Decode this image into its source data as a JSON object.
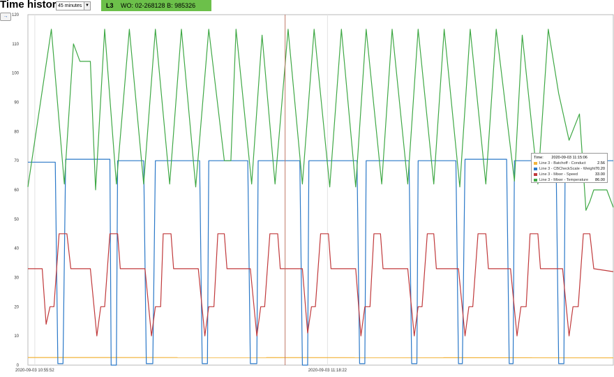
{
  "header": {
    "title": "Time history:",
    "range_select": {
      "value": "45 minutes"
    },
    "status": {
      "line": "L3",
      "wo": "WO: 02-268128 B: 985326",
      "color": "#6cc04a"
    },
    "expand_icon": "arrow-right-icon",
    "expand_label": "→"
  },
  "tooltip": {
    "time_label": "Time:",
    "time_value": "2020-09-03 11:15:06",
    "rows": [
      {
        "name": "Line 3 - Batchoff - Conduct",
        "value": "2.56"
      },
      {
        "name": "Line 3 - CBCheckScale - Weight",
        "value": "70.20"
      },
      {
        "name": "Line 3 - Mixer - Speed",
        "value": "33.00"
      },
      {
        "name": "Line 3 - Mixer - Temperature",
        "value": "86.00"
      }
    ]
  },
  "chart_data": {
    "type": "line",
    "ylim": [
      0,
      120
    ],
    "yticks": [
      0,
      10,
      20,
      30,
      40,
      50,
      60,
      70,
      80,
      90,
      100,
      110,
      120
    ],
    "x_tick_labels": [
      "2020-09-03 10:55:52",
      "2020-09-03 11:18:22"
    ],
    "x_tick_minutes": [
      0.53,
      23.03
    ],
    "xlim_minutes": [
      0,
      45
    ],
    "cursor_time_label": "2020-09-03 11:15:06",
    "cursor_minute": 19.77,
    "grid": "vertical lines at x ticks",
    "legend": "tooltip at cursor",
    "series": [
      {
        "name": "Line 3 - Batchoff - Conduct",
        "color": "#f2b33a",
        "points": [
          [
            0,
            2.6
          ],
          [
            45,
            2.5
          ]
        ]
      },
      {
        "name": "Line 3 - CBCheckScale - Weight",
        "color": "#2a78c8",
        "points": [
          [
            0,
            69.5
          ],
          [
            2.1,
            69.5
          ],
          [
            2.3,
            0.5
          ],
          [
            2.7,
            0.5
          ],
          [
            2.9,
            70.5
          ],
          [
            6.3,
            70.5
          ],
          [
            6.4,
            0
          ],
          [
            6.8,
            0
          ],
          [
            6.9,
            70
          ],
          [
            8.9,
            70
          ],
          [
            9.1,
            0.5
          ],
          [
            9.6,
            0.5
          ],
          [
            9.8,
            70
          ],
          [
            13.2,
            70
          ],
          [
            13.4,
            0.5
          ],
          [
            13.8,
            0.5
          ],
          [
            13.9,
            70
          ],
          [
            16.9,
            70
          ],
          [
            17.1,
            0.5
          ],
          [
            17.6,
            0.5
          ],
          [
            17.7,
            70
          ],
          [
            20.9,
            70
          ],
          [
            21.1,
            0
          ],
          [
            21.5,
            0
          ],
          [
            21.6,
            70
          ],
          [
            25.3,
            70
          ],
          [
            25.5,
            0.5
          ],
          [
            25.9,
            0.5
          ],
          [
            26.0,
            70
          ],
          [
            29.3,
            70
          ],
          [
            29.5,
            0.5
          ],
          [
            29.9,
            0.5
          ],
          [
            30.0,
            70
          ],
          [
            32.9,
            70
          ],
          [
            33.1,
            0.5
          ],
          [
            33.4,
            0.5
          ],
          [
            33.6,
            70.5
          ],
          [
            36.8,
            70.5
          ],
          [
            37.0,
            0.5
          ],
          [
            37.3,
            0.5
          ],
          [
            37.4,
            70
          ],
          [
            40.6,
            70
          ],
          [
            40.8,
            0.5
          ],
          [
            41.2,
            0.5
          ],
          [
            41.3,
            70
          ],
          [
            45,
            70
          ]
        ]
      },
      {
        "name": "Line 3 - Mixer - Speed",
        "color": "#c0393b",
        "points": [
          [
            0,
            33
          ],
          [
            1.1,
            33
          ],
          [
            1.4,
            14
          ],
          [
            1.7,
            20
          ],
          [
            2.0,
            20
          ],
          [
            2.4,
            45
          ],
          [
            3.0,
            45
          ],
          [
            3.3,
            33
          ],
          [
            4.8,
            33
          ],
          [
            5.3,
            10
          ],
          [
            5.6,
            20
          ],
          [
            5.9,
            20
          ],
          [
            6.3,
            45
          ],
          [
            6.9,
            45
          ],
          [
            7.1,
            33
          ],
          [
            9.0,
            33
          ],
          [
            9.5,
            10
          ],
          [
            9.8,
            20
          ],
          [
            10.2,
            20
          ],
          [
            10.4,
            45
          ],
          [
            11.0,
            45
          ],
          [
            11.2,
            33
          ],
          [
            13.1,
            33
          ],
          [
            13.6,
            10
          ],
          [
            13.9,
            20
          ],
          [
            14.3,
            20
          ],
          [
            14.6,
            45
          ],
          [
            15.1,
            45
          ],
          [
            15.3,
            33
          ],
          [
            17.1,
            33
          ],
          [
            17.6,
            10
          ],
          [
            17.9,
            20
          ],
          [
            18.2,
            20
          ],
          [
            18.6,
            45
          ],
          [
            19.2,
            45
          ],
          [
            19.4,
            33
          ],
          [
            21.1,
            33
          ],
          [
            21.5,
            11
          ],
          [
            21.8,
            20
          ],
          [
            22.1,
            20
          ],
          [
            22.5,
            45
          ],
          [
            23.1,
            45
          ],
          [
            23.3,
            33
          ],
          [
            25.2,
            33
          ],
          [
            25.6,
            10
          ],
          [
            25.9,
            20
          ],
          [
            26.3,
            20
          ],
          [
            26.6,
            45
          ],
          [
            27.1,
            45
          ],
          [
            27.3,
            33
          ],
          [
            29.2,
            33
          ],
          [
            29.7,
            10
          ],
          [
            30.0,
            20
          ],
          [
            30.3,
            20
          ],
          [
            30.7,
            45
          ],
          [
            31.2,
            45
          ],
          [
            31.4,
            33
          ],
          [
            33.1,
            33
          ],
          [
            33.6,
            10
          ],
          [
            33.9,
            20
          ],
          [
            34.2,
            20
          ],
          [
            34.6,
            45
          ],
          [
            35.2,
            45
          ],
          [
            35.4,
            33
          ],
          [
            37.1,
            33
          ],
          [
            37.6,
            10
          ],
          [
            37.9,
            20
          ],
          [
            38.3,
            20
          ],
          [
            38.6,
            45
          ],
          [
            39.2,
            45
          ],
          [
            39.4,
            33
          ],
          [
            41.1,
            33
          ],
          [
            41.6,
            10
          ],
          [
            41.9,
            20
          ],
          [
            42.3,
            20
          ],
          [
            42.7,
            45
          ],
          [
            43.2,
            45
          ],
          [
            43.5,
            33
          ],
          [
            45,
            32
          ]
        ]
      },
      {
        "name": "Line 3 - Mixer - Temperature",
        "color": "#3fa845",
        "points": [
          [
            0,
            61
          ],
          [
            1.8,
            115
          ],
          [
            2.8,
            62
          ],
          [
            3.5,
            110
          ],
          [
            4.0,
            104
          ],
          [
            4.8,
            104
          ],
          [
            5.2,
            60
          ],
          [
            5.9,
            115
          ],
          [
            6.8,
            62
          ],
          [
            7.8,
            115
          ],
          [
            8.9,
            62
          ],
          [
            9.8,
            115
          ],
          [
            10.9,
            62
          ],
          [
            11.8,
            115
          ],
          [
            12.9,
            61
          ],
          [
            13.9,
            115
          ],
          [
            15.1,
            70
          ],
          [
            15.6,
            70
          ],
          [
            16.0,
            115
          ],
          [
            17.2,
            62
          ],
          [
            18.0,
            113
          ],
          [
            19.0,
            62
          ],
          [
            20.0,
            115
          ],
          [
            21.1,
            62
          ],
          [
            22.0,
            115
          ],
          [
            23.2,
            61
          ],
          [
            24.1,
            115
          ],
          [
            25.2,
            61
          ],
          [
            26.0,
            115
          ],
          [
            27.2,
            62
          ],
          [
            28.0,
            115
          ],
          [
            29.2,
            62
          ],
          [
            30.0,
            115
          ],
          [
            31.2,
            62
          ],
          [
            32.0,
            115
          ],
          [
            33.2,
            61
          ],
          [
            34.0,
            115
          ],
          [
            35.2,
            62
          ],
          [
            36.0,
            115
          ],
          [
            37.4,
            63
          ],
          [
            38.0,
            113
          ],
          [
            39.2,
            62
          ],
          [
            40.0,
            115
          ],
          [
            40.8,
            93
          ],
          [
            41.6,
            77
          ],
          [
            42.4,
            86
          ],
          [
            42.9,
            53
          ],
          [
            43.2,
            56
          ],
          [
            43.5,
            60
          ],
          [
            44.0,
            60
          ],
          [
            44.5,
            60
          ],
          [
            45,
            54
          ]
        ]
      }
    ]
  }
}
